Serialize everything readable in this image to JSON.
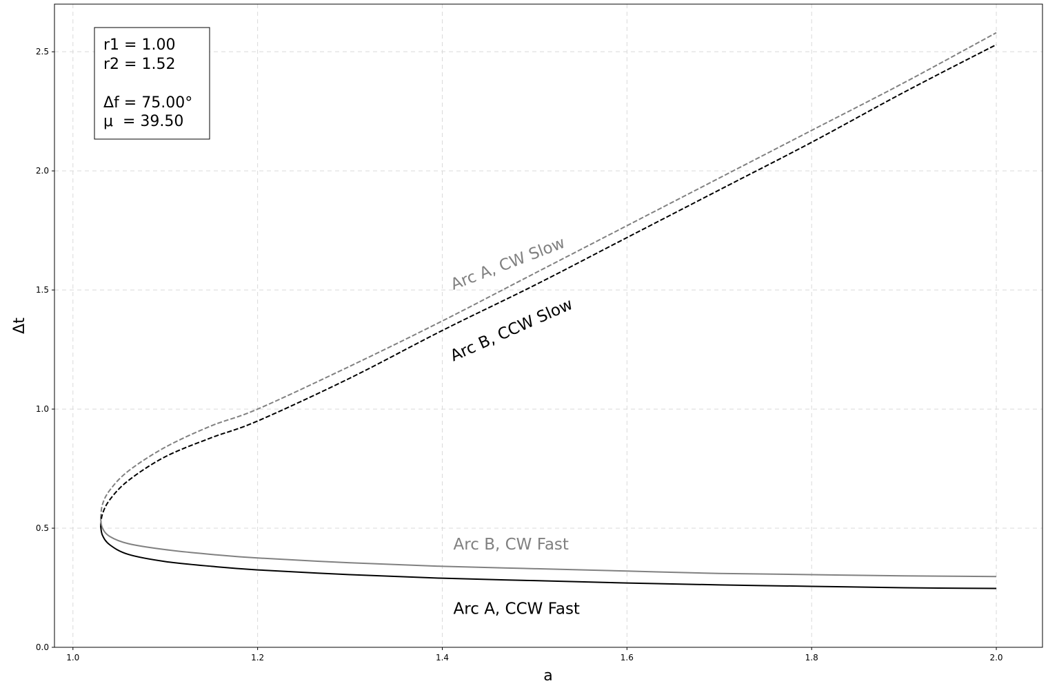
{
  "chart_data": {
    "type": "line",
    "xlabel": "a",
    "ylabel": "Δt",
    "xlim": [
      0.98,
      2.05
    ],
    "ylim": [
      0.0,
      2.7
    ],
    "grid": true,
    "x_ticks": [
      1.0,
      1.2,
      1.4,
      1.6,
      1.8,
      2.0
    ],
    "x_tick_labels": [
      "1.0",
      "1.2",
      "1.4",
      "1.6",
      "1.8",
      "2.0"
    ],
    "y_ticks": [
      0.0,
      0.5,
      1.0,
      1.5,
      2.0,
      2.5
    ],
    "y_tick_labels": [
      "0.0",
      "0.5",
      "1.0",
      "1.5",
      "2.0",
      "2.5"
    ],
    "series": [
      {
        "name": "Arc A, CW Slow",
        "label_text": "Arc A, CW Slow",
        "color": "#808080",
        "dash": "dashed",
        "label_anchor": [
          1.412,
          1.5
        ],
        "label_angle": -21,
        "x": [
          1.03,
          1.032,
          1.04,
          1.06,
          1.1,
          1.15,
          1.2,
          1.3,
          1.4,
          1.5,
          1.6,
          1.7,
          1.8,
          1.9,
          2.0
        ],
        "y": [
          0.54,
          0.6,
          0.66,
          0.74,
          0.84,
          0.93,
          1.0,
          1.18,
          1.37,
          1.57,
          1.77,
          1.97,
          2.17,
          2.37,
          2.58
        ]
      },
      {
        "name": "Arc B, CCW Slow",
        "label_text": "Arc B, CCW Slow",
        "color": "#000000",
        "dash": "dashed",
        "label_anchor": [
          1.412,
          1.2
        ],
        "label_angle": -24,
        "x": [
          1.03,
          1.032,
          1.04,
          1.06,
          1.1,
          1.15,
          1.2,
          1.3,
          1.4,
          1.5,
          1.6,
          1.7,
          1.8,
          1.9,
          2.0
        ],
        "y": [
          0.51,
          0.56,
          0.62,
          0.7,
          0.8,
          0.88,
          0.95,
          1.13,
          1.33,
          1.52,
          1.72,
          1.92,
          2.12,
          2.33,
          2.53
        ]
      },
      {
        "name": "Arc B, CW Fast",
        "label_text": "Arc B, CW Fast",
        "color": "#808080",
        "dash": "solid",
        "label_anchor": [
          1.412,
          0.41
        ],
        "label_angle": 0,
        "x": [
          1.03,
          1.032,
          1.04,
          1.06,
          1.1,
          1.15,
          1.2,
          1.3,
          1.4,
          1.5,
          1.6,
          1.7,
          1.8,
          1.9,
          2.0
        ],
        "y": [
          0.54,
          0.5,
          0.465,
          0.435,
          0.41,
          0.39,
          0.375,
          0.355,
          0.34,
          0.33,
          0.32,
          0.31,
          0.305,
          0.3,
          0.297
        ]
      },
      {
        "name": "Arc A, CCW Fast",
        "label_text": "Arc A, CCW Fast",
        "color": "#000000",
        "dash": "solid",
        "label_anchor": [
          1.412,
          0.14
        ],
        "label_angle": 0,
        "x": [
          1.03,
          1.032,
          1.04,
          1.06,
          1.1,
          1.15,
          1.2,
          1.3,
          1.4,
          1.5,
          1.6,
          1.7,
          1.8,
          1.9,
          2.0
        ],
        "y": [
          0.51,
          0.47,
          0.43,
          0.39,
          0.36,
          0.34,
          0.325,
          0.305,
          0.29,
          0.28,
          0.27,
          0.262,
          0.256,
          0.25,
          0.247
        ]
      }
    ]
  },
  "info_box": {
    "r1_line": "r1 = 1.00",
    "r2_line": "r2 = 1.52",
    "df_line": "Δf = 75.00°",
    "mu_line": "μ  = 39.50"
  }
}
